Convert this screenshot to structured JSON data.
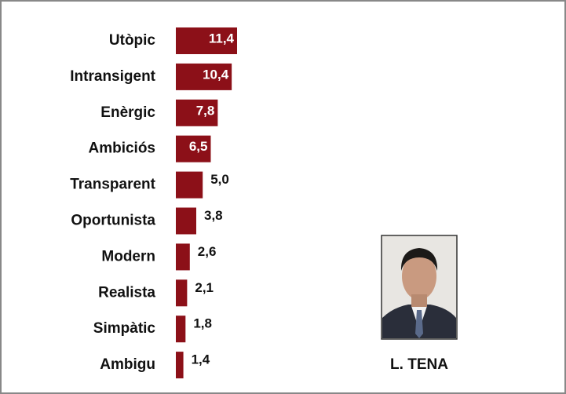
{
  "chart_data": {
    "type": "bar",
    "orientation": "horizontal",
    "categories": [
      "Utòpic",
      "Intransigent",
      "Enèrgic",
      "Ambiciós",
      "Transparent",
      "Oportunista",
      "Modern",
      "Realista",
      "Simpàtic",
      "Ambigu"
    ],
    "values": [
      11.4,
      10.4,
      7.8,
      6.5,
      5.0,
      3.8,
      2.6,
      2.1,
      1.8,
      1.4
    ],
    "value_labels": [
      "11,4",
      "10,4",
      "7,8",
      "6,5",
      "5,0",
      "3,8",
      "2,6",
      "2,1",
      "1,8",
      "1,4"
    ],
    "color": "#8c1018",
    "caption": "L. TENA"
  }
}
